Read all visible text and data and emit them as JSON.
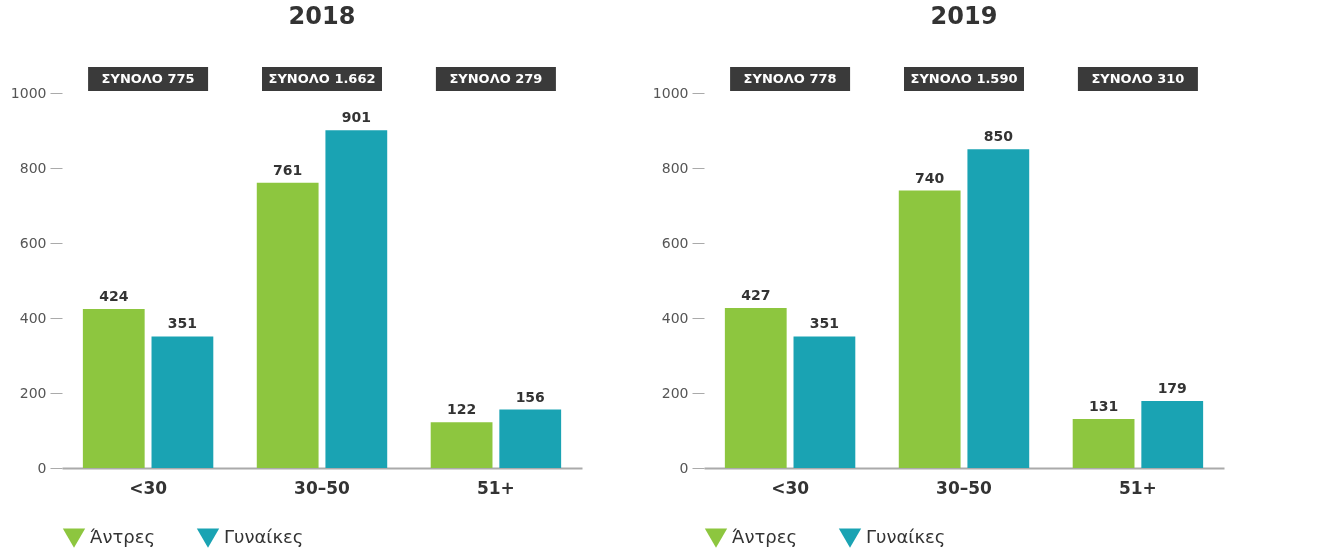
{
  "chart_data": [
    {
      "type": "bar",
      "title": "2018",
      "categories": [
        "<30",
        "30–50",
        "51+"
      ],
      "series": [
        {
          "name": "Άντρες",
          "color": "#8dc63f",
          "values": [
            424,
            761,
            122
          ]
        },
        {
          "name": "Γυναίκες",
          "color": "#1aa3b3",
          "values": [
            351,
            901,
            156
          ]
        }
      ],
      "annotations": [
        "ΣΥΝΟΛΟ 775",
        "ΣΥΝΟΛΟ 1.662",
        "ΣΥΝΟΛΟ 279"
      ],
      "ylim": [
        0,
        1000
      ],
      "yticks": [
        0,
        200,
        400,
        600,
        800,
        1000
      ],
      "data_labels": true,
      "grid": false,
      "legend": "bottom"
    },
    {
      "type": "bar",
      "title": "2019",
      "categories": [
        "<30",
        "30–50",
        "51+"
      ],
      "series": [
        {
          "name": "Άντρες",
          "color": "#8dc63f",
          "values": [
            427,
            740,
            131
          ]
        },
        {
          "name": "Γυναίκες",
          "color": "#1aa3b3",
          "values": [
            351,
            850,
            179
          ]
        }
      ],
      "annotations": [
        "ΣΥΝΟΛΟ 778",
        "ΣΥΝΟΛΟ 1.590",
        "ΣΥΝΟΛΟ 310"
      ],
      "ylim": [
        0,
        1000
      ],
      "yticks": [
        0,
        200,
        400,
        600,
        800,
        1000
      ],
      "data_labels": true,
      "grid": false,
      "legend": "bottom"
    }
  ]
}
